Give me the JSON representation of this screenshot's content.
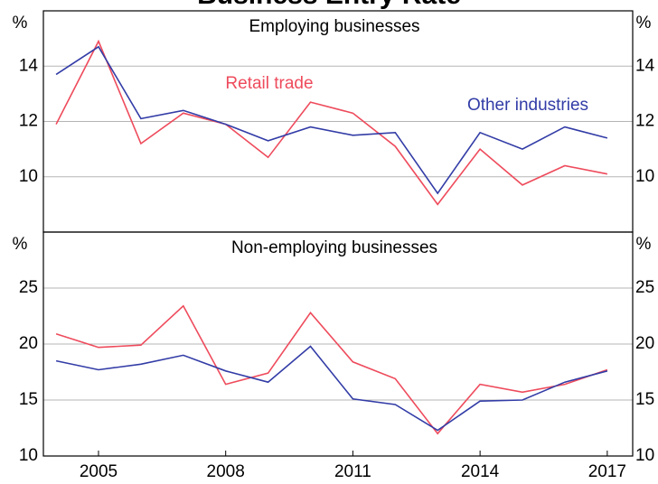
{
  "title": "Business Entry Rate",
  "chart_data": [
    {
      "type": "line",
      "title": "Employing businesses",
      "y_unit": "%",
      "x": [
        2004,
        2005,
        2006,
        2007,
        2008,
        2009,
        2010,
        2011,
        2012,
        2013,
        2014,
        2015,
        2016,
        2017
      ],
      "xlim": [
        2003.7,
        2017.6
      ],
      "ylim": [
        8,
        16
      ],
      "yticks": [
        10,
        12,
        14
      ],
      "grid": true,
      "series": [
        {
          "name": "Retail trade",
          "color": "#ee4b5c",
          "values": [
            11.9,
            14.9,
            11.2,
            12.3,
            11.9,
            10.7,
            12.7,
            12.3,
            11.1,
            9.0,
            11.0,
            9.7,
            10.4,
            10.1
          ]
        },
        {
          "name": "Other industries",
          "color": "#323ca6",
          "values": [
            13.7,
            14.7,
            12.1,
            12.4,
            11.9,
            11.3,
            11.8,
            11.5,
            11.6,
            9.4,
            11.6,
            11.0,
            11.8,
            11.4
          ]
        }
      ]
    },
    {
      "type": "line",
      "title": "Non-employing businesses",
      "y_unit": "%",
      "x": [
        2004,
        2005,
        2006,
        2007,
        2008,
        2009,
        2010,
        2011,
        2012,
        2013,
        2014,
        2015,
        2016,
        2017
      ],
      "xlim": [
        2003.7,
        2017.6
      ],
      "xticks": [
        2005,
        2008,
        2011,
        2014,
        2017
      ],
      "ylim": [
        10,
        30
      ],
      "yticks": [
        10,
        15,
        20,
        25
      ],
      "grid": true,
      "series": [
        {
          "color": "#ee4b5c",
          "values": [
            20.9,
            19.7,
            19.9,
            23.4,
            16.4,
            17.4,
            22.8,
            18.4,
            16.9,
            12.0,
            16.4,
            15.7,
            16.4,
            17.7
          ]
        },
        {
          "color": "#323ca6",
          "values": [
            18.5,
            17.7,
            18.2,
            19.0,
            17.6,
            16.6,
            19.8,
            15.1,
            14.6,
            12.3,
            14.9,
            15.0,
            16.6,
            17.6
          ]
        }
      ]
    }
  ]
}
